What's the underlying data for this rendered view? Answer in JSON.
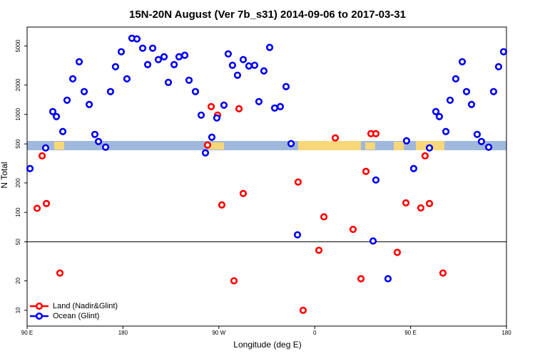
{
  "chart_data": {
    "type": "scatter",
    "title": "15N-20N August (Ver 7b_s31)   2014-09-06 to 2017-03-31",
    "xlabel": "Longitude (deg E)",
    "ylabel": "N Total",
    "xlim": [
      90,
      540
    ],
    "ylim": [
      6.9,
      7800
    ],
    "log_y": true,
    "xticks": [
      {
        "value": 90,
        "label": "90 E"
      },
      {
        "value": 180,
        "label": "180"
      },
      {
        "value": 270,
        "label": "90 W"
      },
      {
        "value": 360,
        "label": "0"
      },
      {
        "value": 450,
        "label": "90 E"
      },
      {
        "value": 540,
        "label": "180"
      }
    ],
    "yticks": [
      10,
      20,
      50,
      100,
      200,
      500,
      1000,
      2000,
      5000
    ],
    "hline": 50,
    "legend": "bottom-left",
    "series": [
      {
        "name": "Land (Nadir&Glint)",
        "color": "#ff0000",
        "x": [
          99.4,
          104.1,
          108.1,
          120.8,
          259.4,
          262.8,
          268.8,
          272.8,
          284.2,
          288.9,
          292.9,
          344.4,
          349.1,
          363.9,
          368.6,
          379.3,
          396.0,
          403.4,
          408.1,
          412.8,
          417.4,
          437.5,
          445.6,
          459.6,
          463.6,
          467.7,
          480.4
        ],
        "values": [
          110,
          378,
          123,
          24,
          487,
          1202,
          984,
          119,
          20,
          1143,
          156,
          204,
          10,
          41,
          90,
          575,
          67,
          21,
          262,
          636,
          636,
          39,
          125,
          111,
          378,
          123,
          24
        ]
      },
      {
        "name": "Ocean (Glint)",
        "color": "#0000ee",
        "x": [
          92.7,
          107.4,
          114.1,
          117.5,
          123.5,
          127.5,
          132.9,
          138.9,
          143.6,
          148.3,
          153.6,
          157.0,
          163.7,
          168.3,
          173.0,
          178.4,
          183.7,
          188.4,
          193.1,
          198.5,
          203.2,
          207.9,
          213.2,
          218.6,
          222.6,
          228.0,
          232.6,
          238.0,
          242.0,
          248.0,
          253.4,
          257.4,
          263.4,
          268.1,
          274.8,
          278.8,
          282.8,
          287.5,
          292.9,
          298.2,
          303.6,
          307.6,
          312.3,
          317.7,
          322.4,
          327.7,
          333.1,
          337.8,
          343.8,
          414.8,
          417.4,
          428.8,
          446.2,
          452.9,
          467.7,
          473.7,
          477.0,
          483.1,
          487.1,
          492.4,
          498.5,
          502.5,
          507.2,
          512.5,
          516.5,
          523.3,
          527.9,
          532.6,
          537.3
        ],
        "values": [
          280,
          455,
          1069,
          951,
          669,
          1397,
          2310,
          3450,
          1710,
          1264,
          625,
          529,
          463,
          1710,
          3070,
          4366,
          2310,
          5990,
          5900,
          4745,
          3225,
          4745,
          3630,
          3880,
          2124,
          3225,
          3880,
          4017,
          2234,
          1710,
          984,
          405,
          585,
          920,
          1244,
          4150,
          3176,
          2513,
          3630,
          3125,
          3176,
          1352,
          2780,
          4830,
          1162,
          1202,
          1923,
          503,
          59,
          51,
          214,
          21,
          538,
          280,
          455,
          1069,
          951,
          669,
          1397,
          2310,
          3450,
          1710,
          1264,
          625,
          529,
          463,
          1710,
          3070,
          4366
        ]
      }
    ]
  }
}
